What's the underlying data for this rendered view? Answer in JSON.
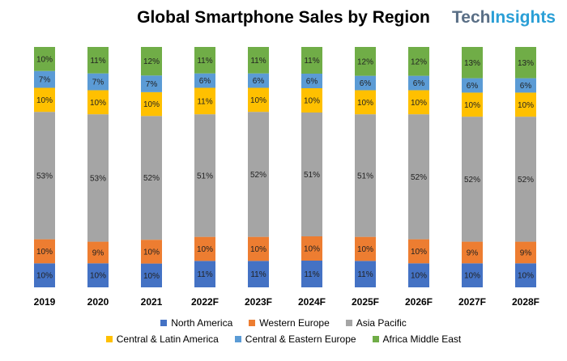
{
  "chart_data": {
    "type": "stacked-bar",
    "title": "Global Smartphone Sales by Region",
    "categories": [
      "2019",
      "2020",
      "2021",
      "2022F",
      "2023F",
      "2024F",
      "2025F",
      "2026F",
      "2027F",
      "2028F"
    ],
    "series": [
      {
        "name": "North America",
        "color": "#4472c4",
        "values": [
          10,
          10,
          10,
          11,
          11,
          11,
          11,
          10,
          10,
          10
        ]
      },
      {
        "name": "Western Europe",
        "color": "#ed7d31",
        "values": [
          10,
          9,
          10,
          10,
          10,
          10,
          10,
          10,
          9,
          9
        ]
      },
      {
        "name": "Asia Pacific",
        "color": "#a5a5a5",
        "values": [
          53,
          53,
          52,
          51,
          52,
          51,
          51,
          52,
          52,
          52
        ]
      },
      {
        "name": "Central & Latin America",
        "color": "#ffc000",
        "values": [
          10,
          10,
          10,
          11,
          10,
          10,
          10,
          10,
          10,
          10
        ]
      },
      {
        "name": "Central & Eastern Europe",
        "color": "#5b9bd5",
        "values": [
          7,
          7,
          7,
          6,
          6,
          6,
          6,
          6,
          6,
          6
        ]
      },
      {
        "name": "Africa Middle East",
        "color": "#70ad47",
        "values": [
          10,
          11,
          12,
          11,
          11,
          11,
          12,
          12,
          13,
          13
        ]
      }
    ],
    "value_suffix": "%",
    "legend_position": "bottom"
  },
  "brand": {
    "part1": "Tech",
    "part2": "Insights"
  }
}
